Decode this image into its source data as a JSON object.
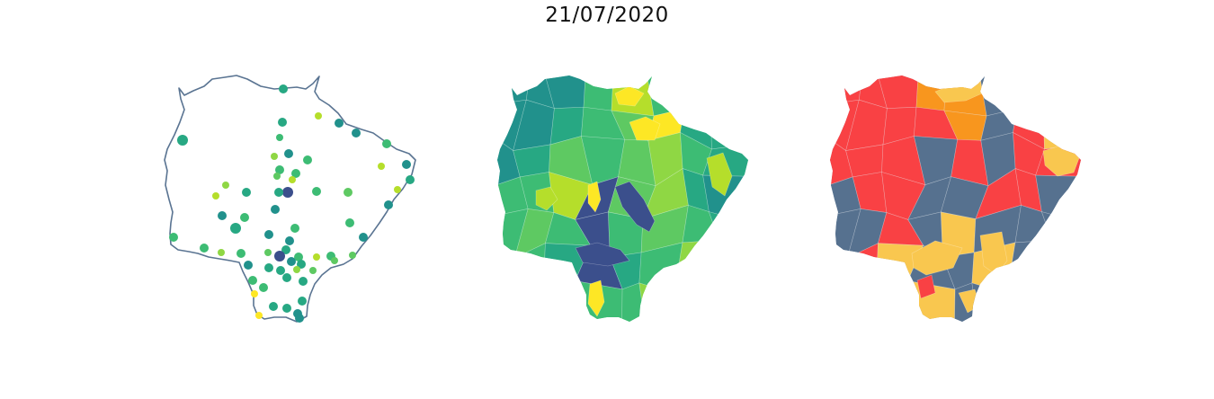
{
  "title": "21/07/2020",
  "colors": {
    "outline": "#5a7492",
    "viridis": [
      "#3b4f8c",
      "#21918c",
      "#27a883",
      "#3dbc74",
      "#5ec962",
      "#8fd744",
      "#b5de2b",
      "#fde725"
    ],
    "risk": {
      "gray": "#56718f",
      "red": "#f94144",
      "orange": "#f8961e",
      "yellow": "#f9c74f"
    }
  },
  "panels": [
    {
      "name": "points-map",
      "style": "points"
    },
    {
      "name": "choropleth-viridis",
      "style": "viridis"
    },
    {
      "name": "choropleth-risk",
      "style": "risk"
    }
  ]
}
